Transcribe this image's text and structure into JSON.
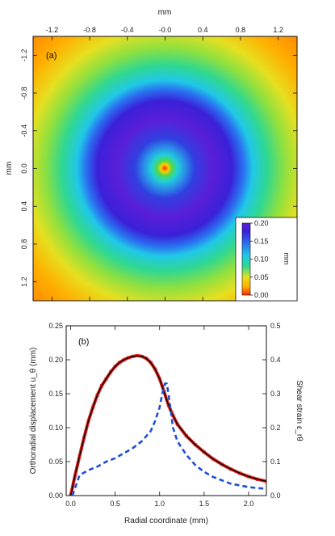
{
  "chart_data": [
    {
      "type": "heatmap",
      "panel_label": "(a)",
      "xlabel": "mm",
      "ylabel": "mm",
      "xlim": [
        -1.4,
        1.4
      ],
      "ylim": [
        -1.4,
        1.4
      ],
      "x_ticks": [
        "-1.2",
        "-0.8",
        "-0.4",
        "-0.0",
        "0.4",
        "0.8",
        "1.2"
      ],
      "x_tick_values": [
        -1.2,
        -0.8,
        -0.4,
        0.0,
        0.4,
        0.8,
        1.2
      ],
      "y_ticks": [
        "-1.2",
        "-0.8",
        "-0.4",
        "0.0",
        "0.4",
        "0.8",
        "1.2"
      ],
      "y_tick_values": [
        -1.2,
        -0.8,
        -0.4,
        0.0,
        0.4,
        0.8,
        1.2
      ],
      "colorbar": {
        "label": "mm",
        "min": 0.0,
        "max": 0.2,
        "ticks": [
          "0.20",
          "0.15",
          "0.10",
          "0.05",
          "0.00"
        ],
        "tick_values": [
          0.2,
          0.15,
          0.1,
          0.05,
          0.0
        ]
      },
      "radial_profile_mm": {
        "r": [
          0.0,
          0.1,
          0.2,
          0.3,
          0.5,
          0.75,
          0.9,
          1.0,
          1.1,
          1.2,
          1.4,
          1.6,
          1.8,
          2.0
        ],
        "value": [
          0.0,
          0.06,
          0.1,
          0.13,
          0.18,
          0.205,
          0.195,
          0.17,
          0.13,
          0.1,
          0.08,
          0.06,
          0.04,
          0.02
        ]
      }
    },
    {
      "type": "line",
      "panel_label": "(b)",
      "xlabel": "Radial coordinate (mm)",
      "ylabel": "Orthoradial displacement u_θ (mm)",
      "ylabel_right": "Shear strain ε_rθ",
      "xlim": [
        -0.05,
        2.2
      ],
      "ylim": [
        0,
        0.25
      ],
      "ylim_right": [
        0,
        0.5
      ],
      "x_ticks": [
        "0.0",
        "0.5",
        "1.0",
        "1.5",
        "2.0"
      ],
      "x_tick_values": [
        0.0,
        0.5,
        1.0,
        1.5,
        2.0
      ],
      "y_ticks": [
        "0.00",
        "0.05",
        "0.10",
        "0.15",
        "0.20",
        "0.25"
      ],
      "y_tick_values": [
        0.0,
        0.05,
        0.1,
        0.15,
        0.2,
        0.25
      ],
      "y_ticks_right": [
        "0.0",
        "0.1",
        "0.2",
        "0.3",
        "0.4",
        "0.5"
      ],
      "y_tick_values_right": [
        0.0,
        0.1,
        0.2,
        0.3,
        0.4,
        0.5
      ],
      "series": [
        {
          "axis": "left",
          "style": "red-points",
          "color": "#e8231f",
          "x": [
            0.0,
            0.05,
            0.1,
            0.15,
            0.2,
            0.25,
            0.3,
            0.35,
            0.4,
            0.45,
            0.5,
            0.55,
            0.6,
            0.65,
            0.7,
            0.75,
            0.8,
            0.85,
            0.9,
            0.95,
            1.0,
            1.05,
            1.1,
            1.15,
            1.2,
            1.3,
            1.4,
            1.5,
            1.6,
            1.7,
            1.8,
            1.9,
            2.0,
            2.1,
            2.2
          ],
          "y": [
            0.0,
            0.03,
            0.058,
            0.085,
            0.11,
            0.13,
            0.148,
            0.162,
            0.172,
            0.182,
            0.19,
            0.196,
            0.2,
            0.203,
            0.205,
            0.206,
            0.205,
            0.202,
            0.196,
            0.186,
            0.172,
            0.153,
            0.133,
            0.118,
            0.105,
            0.088,
            0.075,
            0.064,
            0.054,
            0.046,
            0.039,
            0.033,
            0.028,
            0.024,
            0.021
          ]
        },
        {
          "axis": "left",
          "style": "black-line",
          "color": "#000000",
          "x": [
            0.0,
            0.05,
            0.1,
            0.15,
            0.2,
            0.25,
            0.3,
            0.35,
            0.4,
            0.45,
            0.5,
            0.55,
            0.6,
            0.65,
            0.7,
            0.75,
            0.8,
            0.85,
            0.9,
            0.95,
            1.0,
            1.05,
            1.1,
            1.15,
            1.2,
            1.3,
            1.4,
            1.5,
            1.6,
            1.7,
            1.8,
            1.9,
            2.0,
            2.1,
            2.2
          ],
          "y": [
            0.0,
            0.03,
            0.058,
            0.085,
            0.11,
            0.13,
            0.148,
            0.162,
            0.172,
            0.182,
            0.19,
            0.196,
            0.2,
            0.203,
            0.205,
            0.206,
            0.205,
            0.202,
            0.196,
            0.186,
            0.172,
            0.153,
            0.133,
            0.118,
            0.105,
            0.088,
            0.075,
            0.064,
            0.054,
            0.046,
            0.039,
            0.033,
            0.028,
            0.024,
            0.021
          ]
        },
        {
          "axis": "right",
          "style": "blue-dashed",
          "color": "#1f4fd8",
          "x": [
            0.02,
            0.1,
            0.2,
            0.3,
            0.4,
            0.5,
            0.6,
            0.7,
            0.8,
            0.9,
            0.95,
            1.0,
            1.03,
            1.06,
            1.08,
            1.1,
            1.12,
            1.15,
            1.2,
            1.3,
            1.4,
            1.5,
            1.6,
            1.7,
            1.8,
            1.9,
            2.0,
            2.1,
            2.2
          ],
          "y": [
            0.0,
            0.06,
            0.075,
            0.085,
            0.1,
            0.11,
            0.125,
            0.14,
            0.16,
            0.19,
            0.22,
            0.26,
            0.3,
            0.33,
            0.33,
            0.3,
            0.26,
            0.2,
            0.16,
            0.12,
            0.09,
            0.07,
            0.055,
            0.045,
            0.035,
            0.03,
            0.025,
            0.022,
            0.02
          ]
        }
      ]
    }
  ]
}
